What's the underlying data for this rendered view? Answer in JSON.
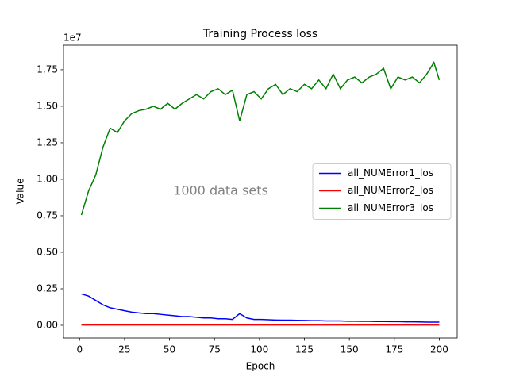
{
  "chart_data": {
    "type": "line",
    "title": "Training Process loss",
    "xlabel": "Epoch",
    "ylabel": "Value",
    "y_offset_label": "1e7",
    "annotation": "1000 data sets",
    "legend": "center right",
    "grid": false,
    "x": [
      1,
      5,
      9,
      13,
      17,
      21,
      25,
      29,
      33,
      37,
      41,
      45,
      49,
      53,
      57,
      61,
      65,
      69,
      73,
      77,
      81,
      85,
      89,
      93,
      97,
      101,
      105,
      109,
      113,
      117,
      121,
      125,
      129,
      133,
      137,
      141,
      145,
      149,
      153,
      157,
      161,
      165,
      169,
      173,
      177,
      181,
      185,
      189,
      193,
      197,
      200
    ],
    "series": [
      {
        "name": "all_NUMError1_los",
        "color": "#0000ff",
        "values": [
          0.215,
          0.2,
          0.17,
          0.14,
          0.12,
          0.11,
          0.1,
          0.09,
          0.085,
          0.08,
          0.08,
          0.075,
          0.07,
          0.065,
          0.06,
          0.06,
          0.055,
          0.05,
          0.05,
          0.045,
          0.045,
          0.04,
          0.08,
          0.05,
          0.04,
          0.04,
          0.038,
          0.036,
          0.035,
          0.035,
          0.034,
          0.033,
          0.032,
          0.032,
          0.03,
          0.03,
          0.03,
          0.028,
          0.028,
          0.027,
          0.027,
          0.026,
          0.026,
          0.025,
          0.025,
          0.024,
          0.024,
          0.023,
          0.022,
          0.022,
          0.022
        ]
      },
      {
        "name": "all_NUMError2_los",
        "color": "#ff0000",
        "values": [
          0.002,
          0.002,
          0.002,
          0.002,
          0.002,
          0.002,
          0.002,
          0.002,
          0.002,
          0.002,
          0.002,
          0.002,
          0.002,
          0.002,
          0.002,
          0.002,
          0.002,
          0.002,
          0.002,
          0.002,
          0.002,
          0.002,
          0.002,
          0.002,
          0.002,
          0.002,
          0.002,
          0.002,
          0.002,
          0.002,
          0.002,
          0.002,
          0.002,
          0.002,
          0.002,
          0.002,
          0.002,
          0.002,
          0.002,
          0.002,
          0.002,
          0.002,
          0.002,
          0.002,
          0.002,
          0.002,
          0.002,
          0.002,
          0.002,
          0.002,
          0.002
        ]
      },
      {
        "name": "all_NUMError3_los",
        "color": "#008000",
        "values": [
          0.755,
          0.92,
          1.03,
          1.22,
          1.35,
          1.32,
          1.4,
          1.45,
          1.47,
          1.48,
          1.5,
          1.48,
          1.52,
          1.48,
          1.52,
          1.55,
          1.58,
          1.55,
          1.6,
          1.62,
          1.58,
          1.61,
          1.4,
          1.58,
          1.6,
          1.55,
          1.62,
          1.65,
          1.58,
          1.62,
          1.6,
          1.65,
          1.62,
          1.68,
          1.62,
          1.72,
          1.62,
          1.68,
          1.7,
          1.66,
          1.7,
          1.72,
          1.76,
          1.62,
          1.7,
          1.68,
          1.7,
          1.66,
          1.72,
          1.8,
          1.68
        ]
      }
    ],
    "xlim": [
      -8.95,
      209.95
    ],
    "xticks": [
      0,
      25,
      50,
      75,
      100,
      125,
      150,
      175,
      200
    ],
    "ylim": [
      -0.087,
      1.918
    ],
    "yticks": [
      {
        "value": 0,
        "label": "0.00"
      },
      0.25,
      {
        "value": 0.5,
        "label": "0.50"
      },
      0.75,
      {
        "value": 1,
        "label": "1.00"
      },
      1.25,
      {
        "value": 1.5,
        "label": "1.50"
      },
      1.75
    ]
  }
}
